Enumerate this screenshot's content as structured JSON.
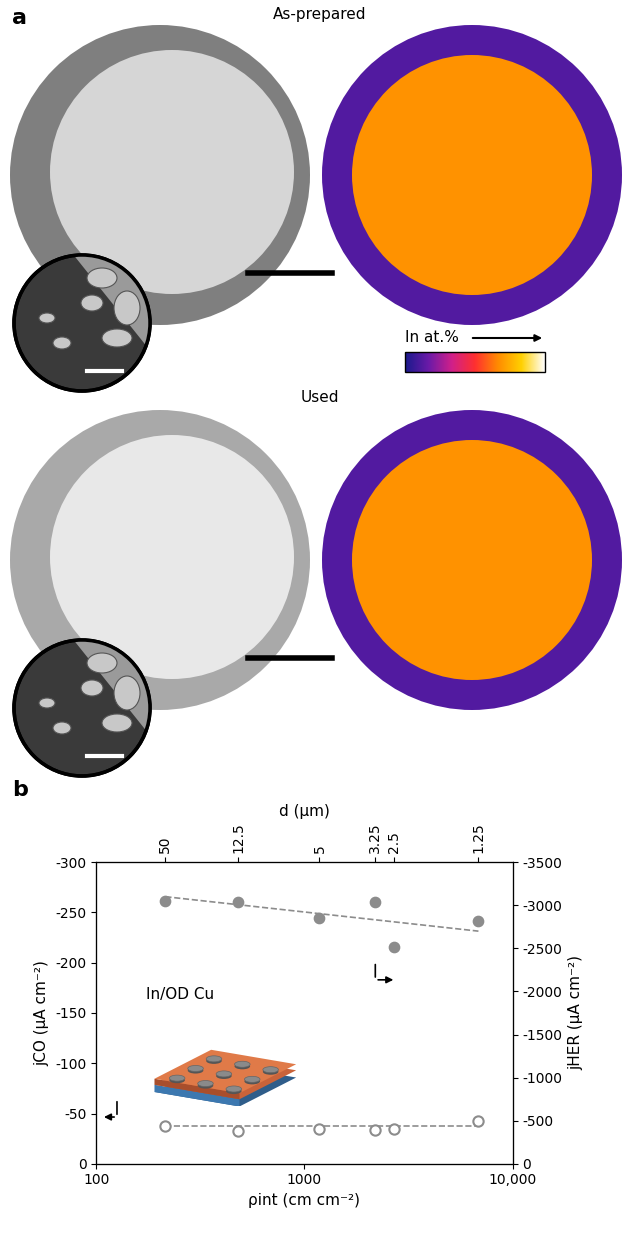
{
  "panel_a": {
    "label": "a",
    "rows": [
      {
        "title": "As-prepared"
      },
      {
        "title": "Used"
      }
    ],
    "color_scale_label": "In at.%"
  },
  "chart_data": {
    "type": "scatter",
    "label": "b",
    "annotation": "In/OD Cu",
    "x": [
      215,
      480,
      1180,
      2170,
      2680,
      6840
    ],
    "xlabel": "ρint (cm cm⁻²)",
    "x2label": "d (μm)",
    "ylabel": "jCO (μA cm⁻²)",
    "y2label": "jHER (μA cm⁻²)",
    "log": "x",
    "xlim": [
      100,
      10000
    ],
    "xticks": [
      100,
      1000,
      {
        "value": 10000,
        "label": "10,000"
      }
    ],
    "x2ticks": [
      {
        "value": 215,
        "label": "50"
      },
      {
        "value": 480,
        "label": "12.5"
      },
      {
        "value": 1180,
        "label": "5"
      },
      {
        "value": 2170,
        "label": "3.25"
      },
      {
        "value": 2680,
        "label": "2.5"
      },
      {
        "value": 6840,
        "label": "1.25"
      }
    ],
    "ylim": [
      0,
      -300
    ],
    "yticks": [
      0,
      -50,
      -100,
      -150,
      -200,
      -250,
      -300
    ],
    "y2lim": [
      0,
      -3500
    ],
    "y2ticks": [
      0,
      -500,
      -1000,
      -1500,
      -2000,
      -2500,
      -3000,
      -3500
    ],
    "series": [
      {
        "axis": "y",
        "marker": "open_circle",
        "color": "#8c8c8c",
        "values": [
          -38,
          -33,
          -35,
          -34,
          -35,
          -43
        ]
      },
      {
        "axis": "y2",
        "marker": "filled_circle",
        "color": "#8c8c8c",
        "values": [
          -3050,
          -3040,
          -2850,
          -3040,
          -2520,
          -2820
        ]
      },
      {
        "type": "line",
        "line_style": "dashed",
        "axis": "y",
        "color": "#8c8c8c",
        "x": [
          215,
          6840
        ],
        "values": [
          -38,
          -38
        ]
      },
      {
        "type": "line",
        "line_style": "dashed",
        "axis": "y2",
        "color": "#8c8c8c",
        "x": [
          215,
          6840
        ],
        "values": [
          -3100,
          -2700
        ]
      }
    ]
  }
}
